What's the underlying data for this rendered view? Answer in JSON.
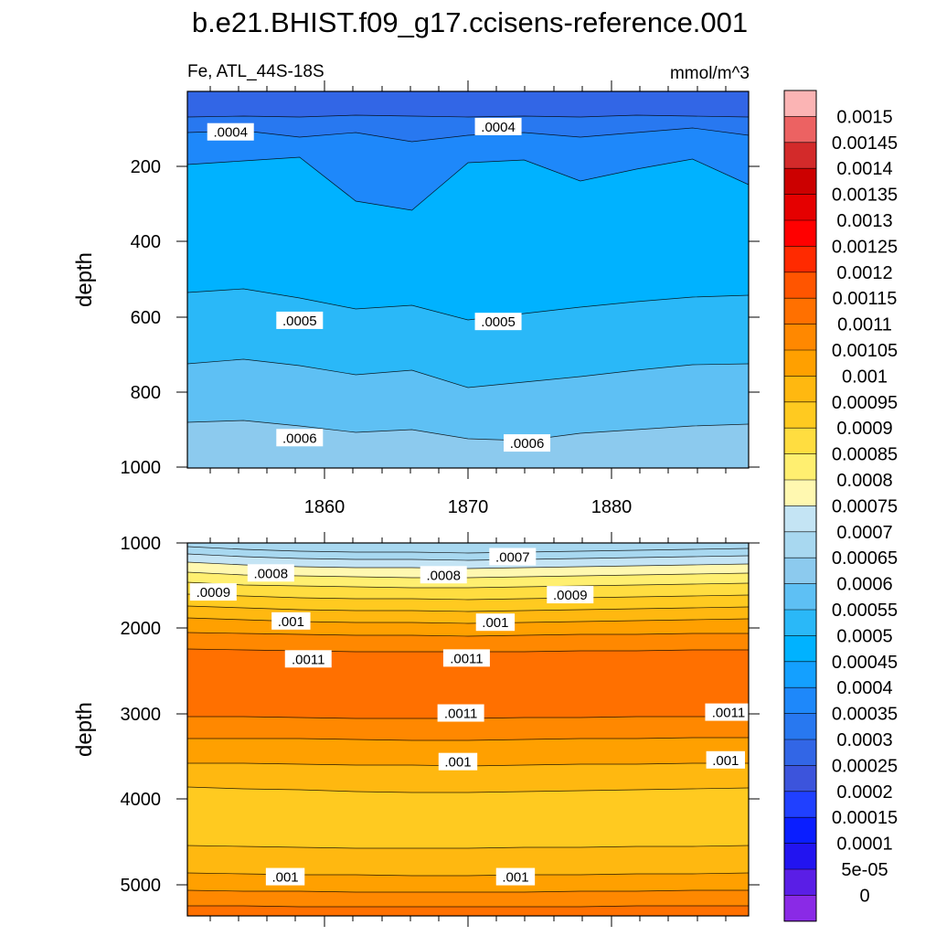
{
  "chart_data": {
    "type": "heatmap",
    "title": "b.e21.BHIST.f09_g17.ccisens-reference.001",
    "variable_label": "Fe, ATL_44S-18S",
    "units_label": "mmol/m^3",
    "x_ticks": [
      "1860",
      "1870",
      "1880"
    ],
    "x_range": [
      1851,
      1890
    ],
    "colorbar": {
      "levels": [
        "0.0015",
        "0.00145",
        "0.0014",
        "0.00135",
        "0.0013",
        "0.00125",
        "0.0012",
        "0.00115",
        "0.0011",
        "0.00105",
        "0.001",
        "0.00095",
        "0.0009",
        "0.00085",
        "0.0008",
        "0.00075",
        "0.0007",
        "0.00065",
        "0.0006",
        "0.00055",
        "0.0005",
        "0.00045",
        "0.0004",
        "0.00035",
        "0.0003",
        "0.00025",
        "0.0002",
        "0.00015",
        "0.0001",
        "5e-05",
        "0"
      ],
      "colors": [
        "#fbb4b4",
        "#ec6262",
        "#d32a2a",
        "#cc0000",
        "#e50000",
        "#ff0000",
        "#ff2a00",
        "#ff5500",
        "#ff7000",
        "#ff8800",
        "#ffa000",
        "#ffb810",
        "#ffca20",
        "#ffdd40",
        "#ffef70",
        "#fff8b0",
        "#c4e4f4",
        "#a8d8f0",
        "#8ccaee",
        "#5ec0f4",
        "#2ab8f8",
        "#00b2ff",
        "#14a0ff",
        "#1e88fa",
        "#2878f0",
        "#3266e6",
        "#3c54dc",
        "#2040ff",
        "#0a1eff",
        "#2214f0",
        "#5a1ee6",
        "#8a2ae6"
      ]
    },
    "panels": [
      {
        "name": "upper",
        "ylabel": "depth",
        "y_ticks": [
          "200",
          "400",
          "600",
          "800",
          "1000"
        ],
        "y_range": [
          5,
          1000
        ],
        "contour_labels": [
          {
            "text": ".0004",
            "year": 1854.0,
            "depth": 113
          },
          {
            "text": ".0004",
            "year": 1872.6,
            "depth": 99
          },
          {
            "text": ".0005",
            "year": 1858.8,
            "depth": 611
          },
          {
            "text": ".0005",
            "year": 1872.6,
            "depth": 614
          },
          {
            "text": ".0006",
            "year": 1858.8,
            "depth": 921
          },
          {
            "text": ".0006",
            "year": 1874.6,
            "depth": 935
          }
        ]
      },
      {
        "name": "lower",
        "ylabel": "depth",
        "y_ticks": [
          "1000",
          "2000",
          "3000",
          "4000",
          "5000"
        ],
        "y_range": [
          1000,
          5375
        ],
        "contour_labels": [
          {
            "text": ".0007",
            "year": 1873.6,
            "depth": 1166
          },
          {
            "text": ".0008",
            "year": 1856.8,
            "depth": 1357
          },
          {
            "text": ".0008",
            "year": 1868.8,
            "depth": 1378
          },
          {
            "text": ".0009",
            "year": 1852.8,
            "depth": 1580
          },
          {
            "text": ".0009",
            "year": 1877.6,
            "depth": 1612
          },
          {
            "text": ".001",
            "year": 1858.2,
            "depth": 1920
          },
          {
            "text": ".001",
            "year": 1872.4,
            "depth": 1935
          },
          {
            "text": ".0011",
            "year": 1859.4,
            "depth": 2365
          },
          {
            "text": ".0011",
            "year": 1870.4,
            "depth": 2355
          },
          {
            "text": ".0011",
            "year": 1870.0,
            "depth": 3000
          },
          {
            "text": ".0011",
            "year": 1888.6,
            "depth": 2990
          },
          {
            "text": ".001",
            "year": 1869.8,
            "depth": 3570
          },
          {
            "text": ".001",
            "year": 1888.4,
            "depth": 3550
          },
          {
            "text": ".001",
            "year": 1857.8,
            "depth": 4920
          },
          {
            "text": ".001",
            "year": 1873.8,
            "depth": 4920
          }
        ]
      }
    ]
  }
}
